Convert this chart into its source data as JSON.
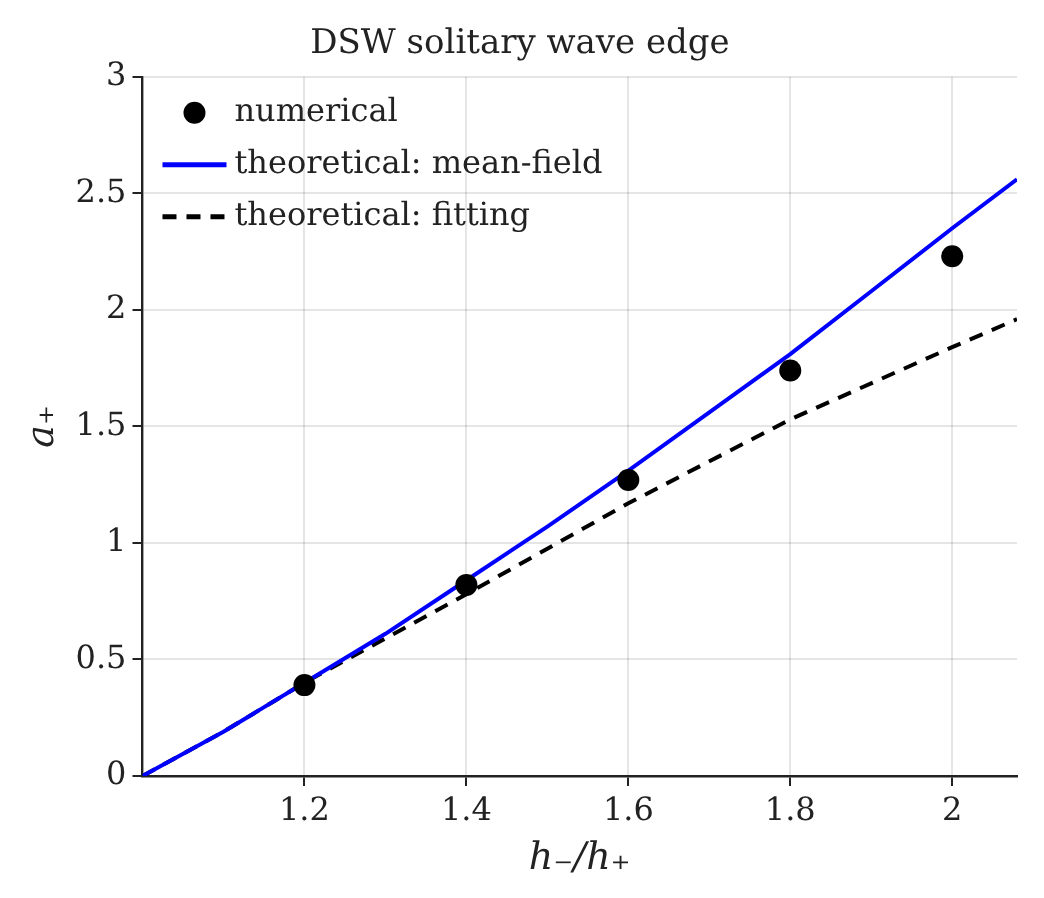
{
  "chart_data": {
    "type": "scatter",
    "title": "DSW solitary wave edge",
    "xlabel": "h₋/h₊",
    "ylabel": "a₊",
    "xlim": [
      1,
      2.08
    ],
    "ylim": [
      0,
      3
    ],
    "xticks": [
      1.2,
      1.4,
      1.6,
      1.8,
      2
    ],
    "yticks": [
      0,
      0.5,
      1,
      1.5,
      2,
      2.5,
      3
    ],
    "grid": true,
    "legend": "top left",
    "series": [
      {
        "name": "numerical",
        "marker": "circle",
        "color": "#000000",
        "x": [
          1.2,
          1.4,
          1.6,
          1.8,
          2
        ],
        "values": [
          0.39,
          0.82,
          1.27,
          1.74,
          2.23
        ]
      },
      {
        "name": "theoretical: mean-field",
        "type": "line",
        "color": "#0000ff",
        "line_style": "solid",
        "x": [
          1,
          1.1,
          1.2,
          1.3,
          1.4,
          1.5,
          1.6,
          1.7,
          1.8,
          1.9,
          2,
          2.08
        ],
        "values": [
          0,
          0.19,
          0.4,
          0.61,
          0.84,
          1.07,
          1.31,
          1.56,
          1.81,
          2.08,
          2.35,
          2.56
        ]
      },
      {
        "name": "theoretical: fitting",
        "type": "line",
        "color": "#000000",
        "line_style": "dashed",
        "x": [
          1,
          1.1,
          1.2,
          1.3,
          1.4,
          1.6,
          1.8,
          2,
          2.08
        ],
        "values": [
          0,
          0.19,
          0.4,
          0.59,
          0.78,
          1.17,
          1.53,
          1.84,
          1.96
        ]
      }
    ]
  }
}
